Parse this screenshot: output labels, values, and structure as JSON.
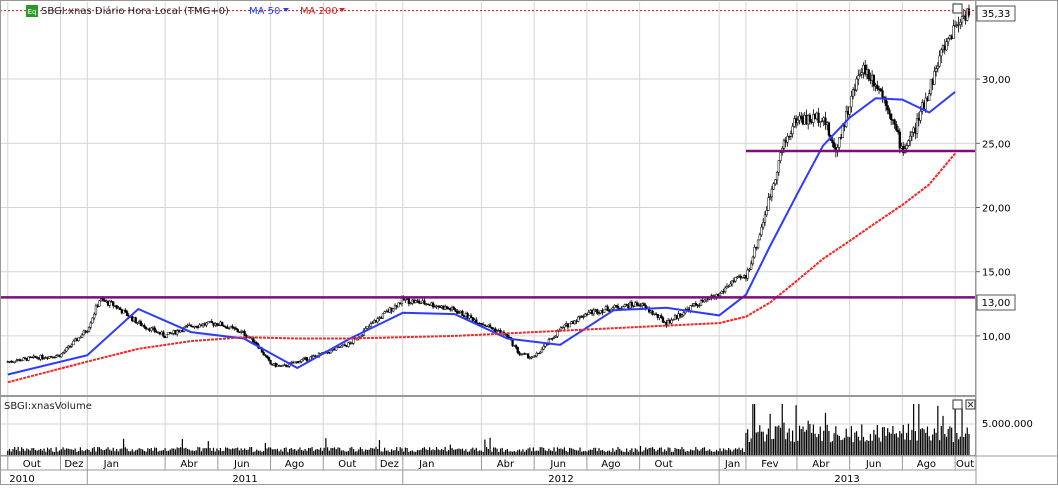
{
  "main_legend": {
    "badge": "Eq",
    "title": "SBGI:xnas Diário Hora Local (TMG+0)",
    "ma50": "MA 50",
    "ma200": "MA 200"
  },
  "volume_legend": {
    "title": "SBGI:xnasVolume"
  },
  "colors": {
    "candle_up": "#ffffff",
    "candle_down": "#000000",
    "ma50": "#2b3cff",
    "ma200": "#ff2020",
    "support_line": "#7a0f7a",
    "grid": "#d4d4d4",
    "last_price_line": "#d01010",
    "ma50_label": "#2b3cff",
    "ma200_label": "#e02020",
    "eq_badge": "#2a9a2a"
  },
  "price_axis": {
    "ticks": [
      "10,00",
      "15,00",
      "20,00",
      "25,00",
      "30,00"
    ],
    "last_price": "35,33",
    "support_label": "13,00"
  },
  "volume_axis": {
    "ticks": [
      "5.000.000"
    ]
  },
  "time_axis": {
    "months": [
      "Out",
      "Dez",
      "Jan",
      "Abr",
      "Jun",
      "Ago",
      "Out",
      "Dez",
      "Jan",
      "Abr",
      "Jun",
      "Ago",
      "Out",
      "Jan",
      "Fev",
      "Abr",
      "Jun",
      "Ago",
      "Out"
    ],
    "years": [
      "2010",
      "2011",
      "2012",
      "2013"
    ]
  },
  "chart_data": {
    "type": "candlestick",
    "title": "SBGI:xnas Diário Hora Local (TMG+0)",
    "period": "2010-10 to 2013-10",
    "ylim": [
      5.4,
      36.0
    ],
    "last_price": 35.33,
    "horizontal_lines": [
      {
        "value": 13.0,
        "label": "13,00",
        "start": "2010-10-01",
        "end": "2013-10-31"
      },
      {
        "value": 24.4,
        "start": "2013-02-01",
        "end": "2013-10-31"
      }
    ],
    "close_series": {
      "dates": [
        "2010-10-01",
        "2010-11-01",
        "2010-12-01",
        "2011-01-01",
        "2011-01-15",
        "2011-02-01",
        "2011-03-01",
        "2011-04-01",
        "2011-05-01",
        "2011-06-01",
        "2011-07-01",
        "2011-07-15",
        "2011-08-01",
        "2011-08-15",
        "2011-09-01",
        "2011-10-01",
        "2011-11-01",
        "2011-12-01",
        "2012-01-01",
        "2012-02-01",
        "2012-03-01",
        "2012-04-01",
        "2012-05-01",
        "2012-05-15",
        "2012-06-01",
        "2012-07-01",
        "2012-08-01",
        "2012-09-01",
        "2012-10-01",
        "2012-11-01",
        "2012-12-01",
        "2013-01-01",
        "2013-01-15",
        "2013-02-01",
        "2013-02-15",
        "2013-03-01",
        "2013-03-15",
        "2013-04-01",
        "2013-04-15",
        "2013-05-01",
        "2013-05-15",
        "2013-06-01",
        "2013-06-15",
        "2013-07-01",
        "2013-07-15",
        "2013-08-01",
        "2013-08-15",
        "2013-09-01",
        "2013-09-15",
        "2013-10-01",
        "2013-10-15"
      ],
      "values": [
        8.0,
        8.3,
        8.5,
        10.5,
        12.8,
        12.4,
        11.0,
        10.0,
        10.8,
        11.0,
        10.2,
        9.5,
        7.8,
        7.6,
        8.0,
        8.6,
        9.4,
        11.2,
        12.8,
        12.5,
        12.0,
        11.0,
        10.0,
        8.6,
        8.3,
        10.5,
        11.8,
        12.2,
        12.5,
        11.0,
        12.3,
        13.2,
        14.2,
        14.6,
        17.5,
        21.0,
        24.6,
        27.0,
        26.8,
        27.2,
        24.3,
        28.0,
        31.0,
        29.8,
        28.0,
        24.4,
        26.0,
        29.2,
        32.0,
        34.2,
        35.3
      ]
    },
    "ma_series": [
      {
        "name": "MA 50",
        "dates": [
          "2010-10-01",
          "2011-01-01",
          "2011-03-01",
          "2011-05-01",
          "2011-07-01",
          "2011-09-01",
          "2011-11-01",
          "2012-01-01",
          "2012-03-01",
          "2012-05-01",
          "2012-07-01",
          "2012-09-01",
          "2012-11-01",
          "2013-01-01",
          "2013-02-01",
          "2013-03-01",
          "2013-04-01",
          "2013-05-01",
          "2013-06-01",
          "2013-07-01",
          "2013-08-01",
          "2013-09-01",
          "2013-10-01"
        ],
        "values": [
          7.0,
          8.5,
          12.1,
          10.3,
          9.8,
          7.5,
          9.8,
          11.8,
          11.7,
          9.8,
          9.3,
          12.0,
          12.2,
          11.6,
          13.2,
          17.0,
          21.0,
          24.8,
          27.0,
          28.5,
          28.4,
          27.4,
          29.0
        ]
      },
      {
        "name": "MA 200",
        "dates": [
          "2010-10-01",
          "2011-01-01",
          "2011-03-01",
          "2011-05-01",
          "2011-07-01",
          "2011-09-01",
          "2011-11-01",
          "2012-01-01",
          "2012-03-01",
          "2012-05-01",
          "2012-07-01",
          "2012-09-01",
          "2012-11-01",
          "2013-01-01",
          "2013-02-01",
          "2013-03-01",
          "2013-04-01",
          "2013-05-01",
          "2013-06-01",
          "2013-07-01",
          "2013-08-01",
          "2013-09-01",
          "2013-10-01"
        ],
        "values": [
          6.4,
          8.0,
          9.0,
          9.6,
          9.9,
          9.8,
          9.8,
          9.9,
          10.0,
          10.2,
          10.4,
          10.6,
          10.8,
          11.0,
          11.5,
          12.6,
          14.3,
          16.0,
          17.4,
          18.8,
          20.2,
          21.8,
          24.2
        ]
      }
    ],
    "volume": {
      "axis_label": "5.000.000",
      "series_name": "SBGI:xnasVolume",
      "notes": "low until 2013-02, large spikes in 2013-04 and 2013-05"
    }
  }
}
